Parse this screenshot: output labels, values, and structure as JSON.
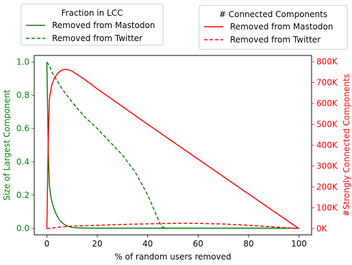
{
  "chart_data": {
    "type": "line",
    "xlabel": "% of random users removed",
    "ylabel_left": "Size of Largest Component",
    "ylabel_right": "#Strongly Connected Components",
    "xlim": [
      -5,
      105
    ],
    "ylim_left": [
      -0.04,
      1.04
    ],
    "ylim_right": [
      -30000,
      830000
    ],
    "x_ticks": [
      0,
      20,
      40,
      60,
      80,
      100
    ],
    "x_tick_labels": [
      "0",
      "20",
      "40",
      "60",
      "80",
      "100"
    ],
    "y_left_ticks": [
      0.0,
      0.2,
      0.4,
      0.6,
      0.8,
      1.0
    ],
    "y_left_tick_labels": [
      "0.0",
      "0.2",
      "0.4",
      "0.6",
      "0.8",
      "1.0"
    ],
    "y_right_ticks": [
      0,
      100000,
      200000,
      300000,
      400000,
      500000,
      600000,
      700000,
      800000
    ],
    "y_right_tick_labels": [
      "0K",
      "100K",
      "200K",
      "300K",
      "400K",
      "500K",
      "600K",
      "700K",
      "800K"
    ],
    "grid": false,
    "colors": {
      "left_axis": "#008000",
      "right_axis": "#ff0000",
      "frame": "#000000",
      "legend_border": "#cccccc"
    },
    "legends": [
      {
        "title": "Fraction in LCC",
        "placement": "top-left",
        "entries": [
          {
            "label": "Removed from Mastodon",
            "color": "#008000",
            "dash": "solid"
          },
          {
            "label": "Removed from Twitter",
            "color": "#008000",
            "dash": "dashed"
          }
        ]
      },
      {
        "title": "# Connected Components",
        "placement": "top-right",
        "entries": [
          {
            "label": "Removed from Mastodon",
            "color": "#ff0000",
            "dash": "solid"
          },
          {
            "label": "Removed from Twitter",
            "color": "#ff0000",
            "dash": "dashed"
          }
        ]
      }
    ],
    "series": [
      {
        "name": "Removed from Mastodon",
        "axis": "left",
        "color": "#008000",
        "dash": "solid",
        "x": [
          0,
          0.3,
          0.6,
          1,
          1.5,
          2,
          3,
          4,
          5,
          6,
          7,
          8,
          9,
          10,
          12,
          15,
          20,
          30,
          50,
          80,
          100
        ],
        "y": [
          1.0,
          0.72,
          0.45,
          0.26,
          0.2,
          0.16,
          0.11,
          0.075,
          0.05,
          0.035,
          0.022,
          0.014,
          0.009,
          0.005,
          0.002,
          0.001,
          0.0,
          0.0,
          0.0,
          0.0,
          0.0
        ]
      },
      {
        "name": "Removed from Twitter",
        "axis": "left",
        "color": "#008000",
        "dash": "dashed",
        "x": [
          0,
          1,
          2,
          4,
          6,
          8,
          10,
          15,
          20,
          25,
          30,
          35,
          40,
          44,
          45.5,
          47,
          50,
          60,
          80,
          100
        ],
        "y": [
          1.0,
          0.98,
          0.94,
          0.89,
          0.84,
          0.8,
          0.76,
          0.67,
          0.6,
          0.52,
          0.44,
          0.34,
          0.2,
          0.06,
          0.01,
          0.0,
          0.0,
          0.0,
          0.0,
          0.0
        ]
      },
      {
        "name": "Removed from Mastodon",
        "axis": "right",
        "color": "#ff0000",
        "dash": "solid",
        "x": [
          0,
          0.5,
          1,
          1.5,
          2,
          3,
          4,
          5,
          6,
          7,
          8,
          10,
          15,
          20,
          40,
          60,
          80,
          100
        ],
        "y": [
          0,
          380000,
          620000,
          660000,
          690000,
          720000,
          740000,
          752000,
          760000,
          763000,
          763000,
          755000,
          715000,
          670000,
          500000,
          333000,
          166000,
          0
        ]
      },
      {
        "name": "Removed from Twitter",
        "axis": "right",
        "color": "#ff0000",
        "dash": "dashed",
        "x": [
          0,
          2,
          5,
          10,
          20,
          30,
          40,
          50,
          55,
          60,
          70,
          80,
          90,
          100
        ],
        "y": [
          0,
          3000,
          7000,
          12000,
          16000,
          20000,
          23000,
          25000,
          25500,
          25000,
          22000,
          16000,
          8000,
          0
        ]
      }
    ]
  }
}
